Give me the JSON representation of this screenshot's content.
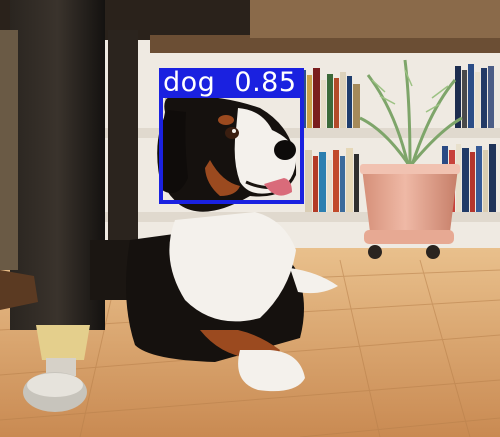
{
  "detections": [
    {
      "class": "dog",
      "score": "0.85",
      "color": "#1a21e0"
    }
  ],
  "palette": {
    "floor": "#d9a56b",
    "shelf": "#ece7df",
    "pot": "#e2a895",
    "dog_black": "#15110e",
    "dog_rust": "#9b4a1f",
    "dog_white": "#f4f1ec",
    "table_leg": "#1b1815",
    "plant": "#7ea56a"
  }
}
